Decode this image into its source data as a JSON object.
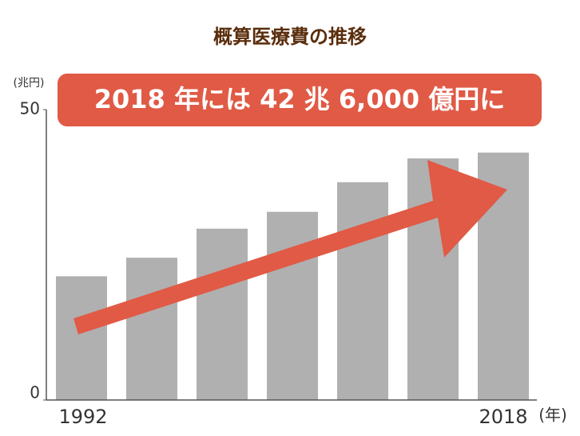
{
  "chart_data": {
    "type": "bar",
    "title": "概算医療費の推移",
    "annotation": "2018 年には 42 兆 6,000 億円に",
    "y_unit": "(兆円)",
    "x_unit": "(年)",
    "categories": [
      "1992",
      null,
      null,
      null,
      null,
      null,
      "2018"
    ],
    "values": [
      21.3,
      24.5,
      29.5,
      32.4,
      37.5,
      41.6,
      42.6
    ],
    "color": "#b0b0b0",
    "ylim": [
      0,
      50
    ],
    "yticks": [
      0,
      50
    ],
    "grid": false
  }
}
